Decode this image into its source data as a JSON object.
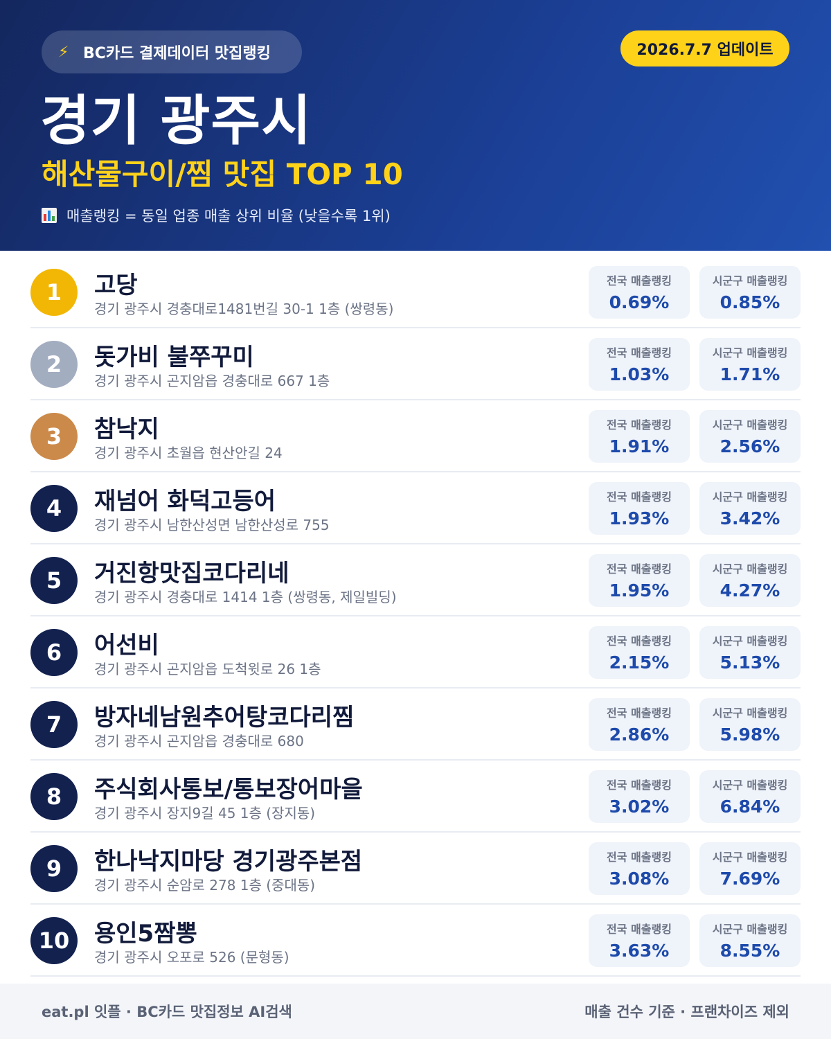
{
  "header": {
    "source_label": "BC카드 결제데이터 맛집랭킹",
    "bolt_icon": "⚡",
    "update_label": "2026.7.7 업데이트",
    "city": "경기 광주시",
    "category": "해산물구이/찜 맛집 TOP 10",
    "legend": "매출랭킹 = 동일 업종 매출 상위 비율 (낮을수록 1위)"
  },
  "labels": {
    "national": "전국 매출랭킹",
    "district": "시군구 매출랭킹"
  },
  "colors": {
    "gold": "#f2b705",
    "silver": "#a3adc0",
    "bronze": "#cc8a4a",
    "navy": "#13214f",
    "accent_yellow": "#ffd21a",
    "value_blue": "#1d4aab"
  },
  "restaurants": [
    {
      "rank": "1",
      "name": "고당",
      "address": "경기 광주시 경충대로1481번길 30-1 1층 (쌍령동)",
      "national": "0.69%",
      "district": "0.85%"
    },
    {
      "rank": "2",
      "name": "돗가비 불쭈꾸미",
      "address": "경기 광주시 곤지암읍 경충대로 667 1층",
      "national": "1.03%",
      "district": "1.71%"
    },
    {
      "rank": "3",
      "name": "참낙지",
      "address": "경기 광주시 초월읍 현산안길 24",
      "national": "1.91%",
      "district": "2.56%"
    },
    {
      "rank": "4",
      "name": "재넘어 화덕고등어",
      "address": "경기 광주시 남한산성면 남한산성로 755",
      "national": "1.93%",
      "district": "3.42%"
    },
    {
      "rank": "5",
      "name": "거진항맛집코다리네",
      "address": "경기 광주시 경충대로 1414 1층 (쌍령동, 제일빌딩)",
      "national": "1.95%",
      "district": "4.27%"
    },
    {
      "rank": "6",
      "name": "어선비",
      "address": "경기 광주시 곤지암읍 도척윗로 26 1층",
      "national": "2.15%",
      "district": "5.13%"
    },
    {
      "rank": "7",
      "name": "방자네남원추어탕코다리찜",
      "address": "경기 광주시 곤지암읍 경충대로 680",
      "national": "2.86%",
      "district": "5.98%"
    },
    {
      "rank": "8",
      "name": "주식회사통보/통보장어마을",
      "address": "경기 광주시 장지9길 45 1층 (장지동)",
      "national": "3.02%",
      "district": "6.84%"
    },
    {
      "rank": "9",
      "name": "한나낙지마당 경기광주본점",
      "address": "경기 광주시 순암로 278 1층 (중대동)",
      "national": "3.08%",
      "district": "7.69%"
    },
    {
      "rank": "10",
      "name": "용인5짬뽕",
      "address": "경기 광주시 오포로 526 (문형동)",
      "national": "3.63%",
      "district": "8.55%"
    }
  ],
  "footer": {
    "left": "eat.pl 잇플 · BC카드 맛집정보 AI검색",
    "right": "매출 건수 기준 · 프랜차이즈 제외"
  }
}
